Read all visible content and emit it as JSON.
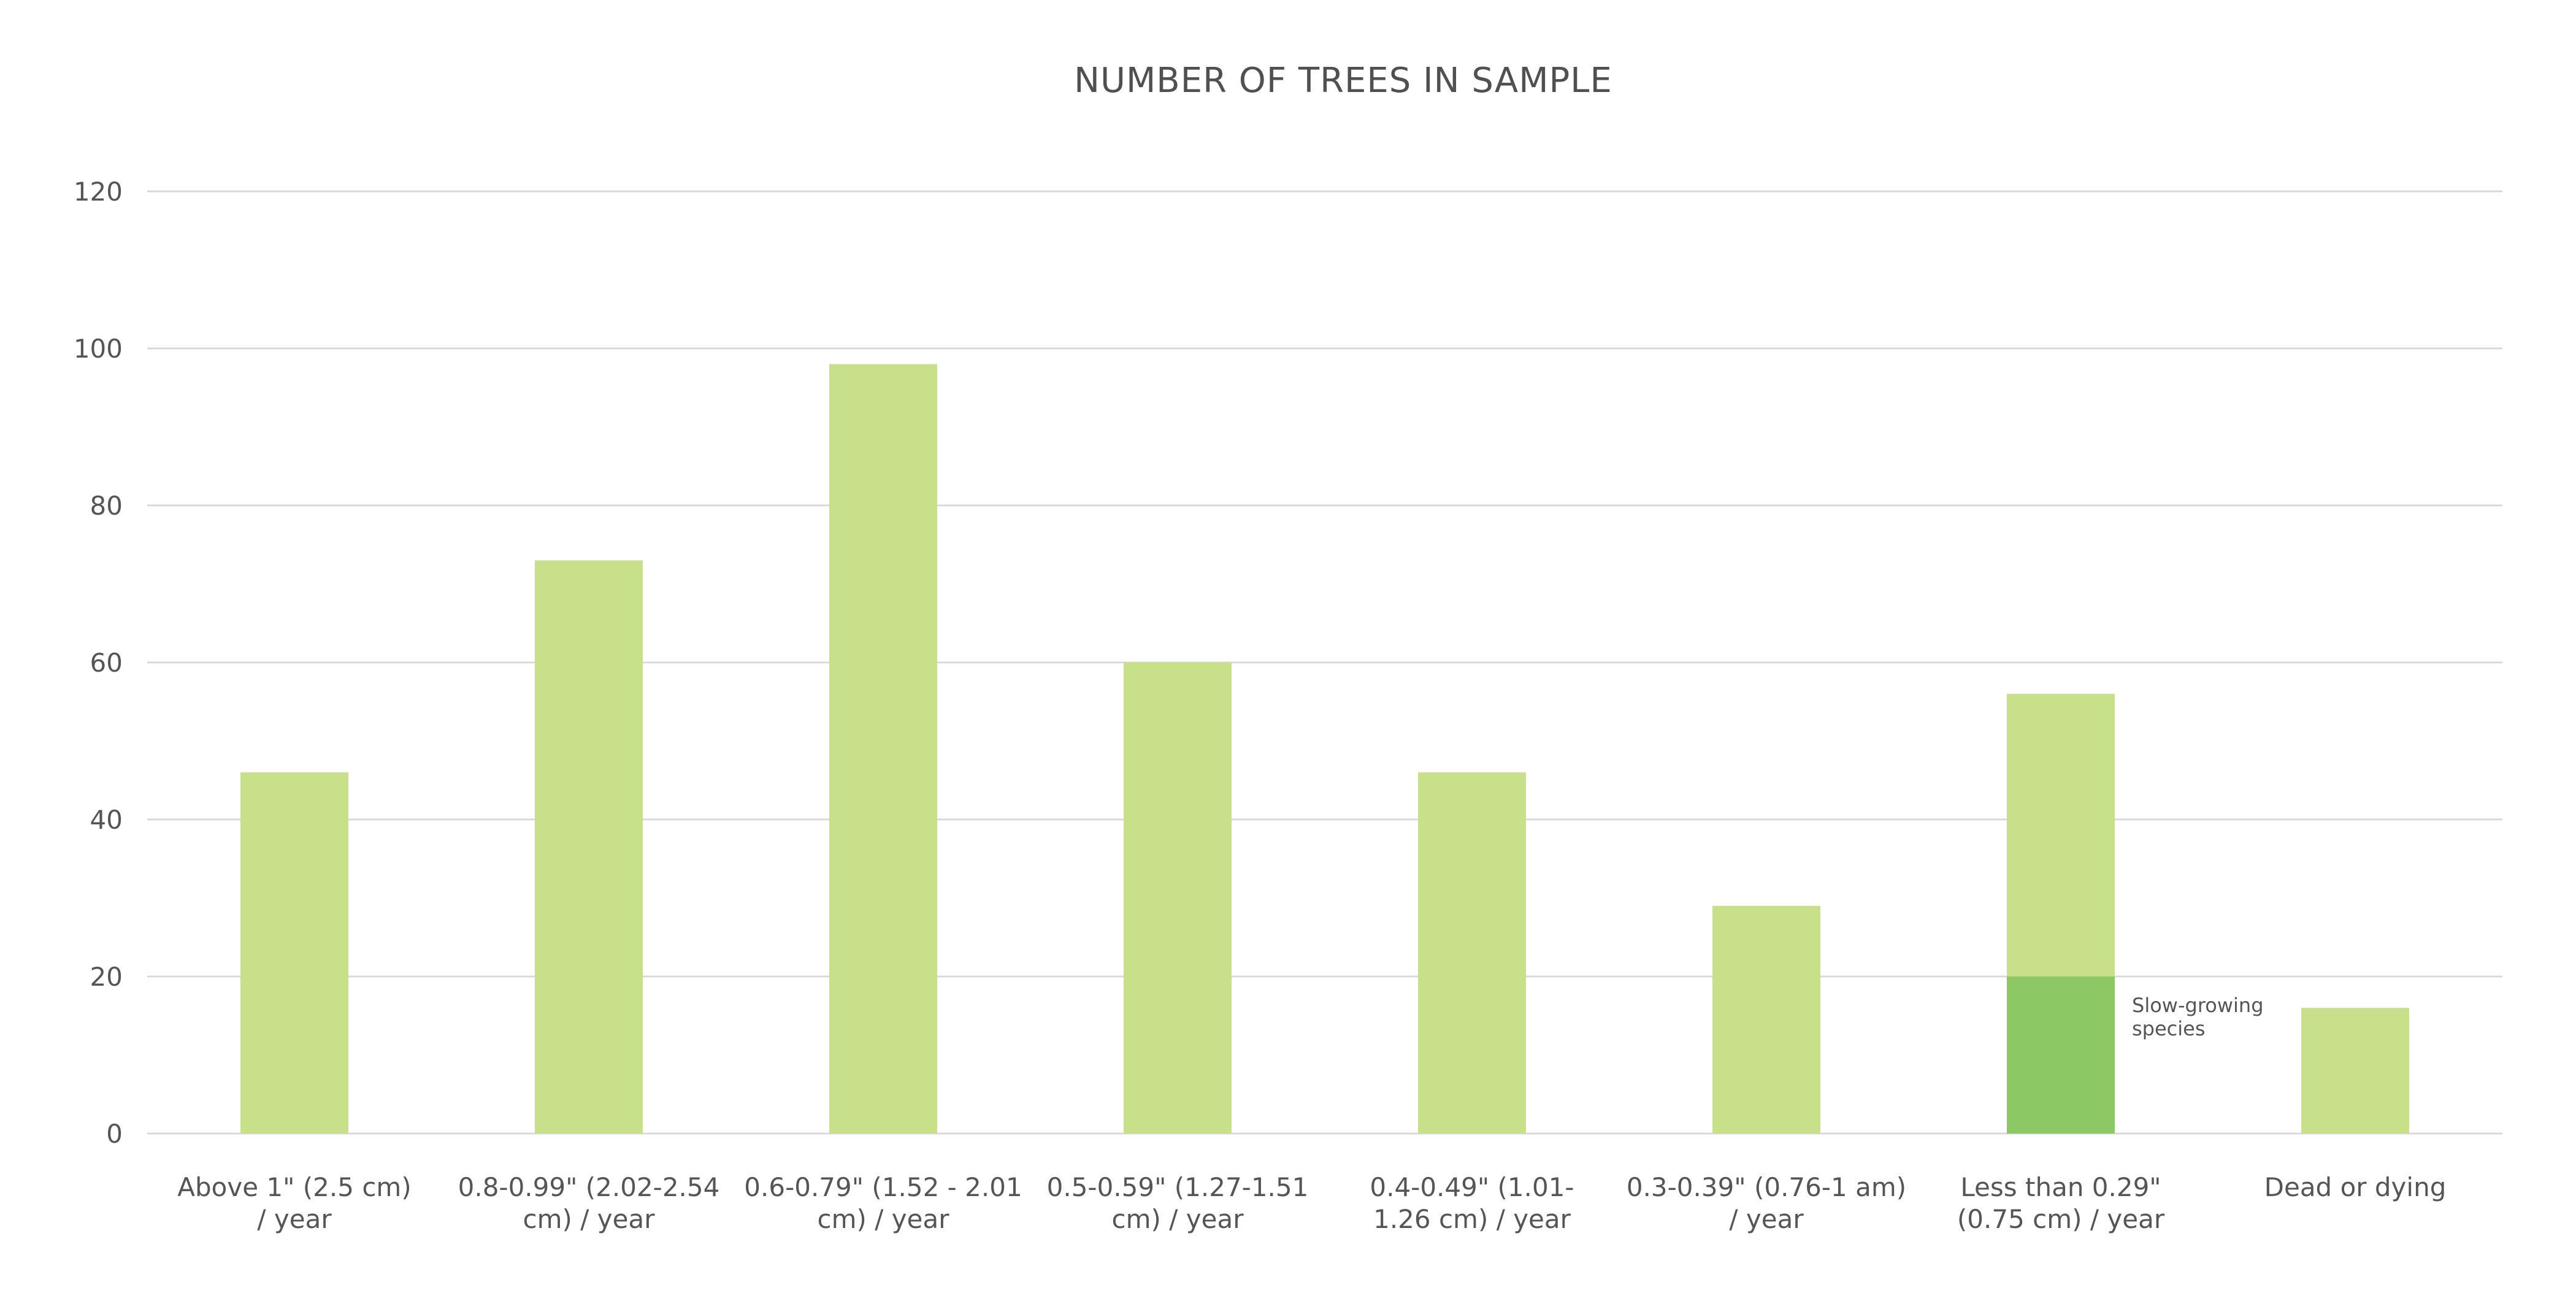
{
  "chart_data": {
    "type": "bar",
    "title": "NUMBER OF TREES IN SAMPLE",
    "xlabel": "",
    "ylabel": "",
    "ylim": [
      0,
      120
    ],
    "yticks": [
      0,
      20,
      40,
      60,
      80,
      100,
      120
    ],
    "grid": true,
    "legend": "none",
    "categories": [
      [
        "Above 1\" (2.5 cm)",
        "/ year"
      ],
      [
        "0.8-0.99\" (2.02-2.54",
        "cm) / year"
      ],
      [
        "0.6-0.79\" (1.52 - 2.01",
        "cm) / year"
      ],
      [
        "0.5-0.59\" (1.27-1.51",
        "cm) / year"
      ],
      [
        "0.4-0.49\" (1.01-",
        "1.26  cm) / year"
      ],
      [
        "0.3-0.39\" (0.76-1 am)",
        "/ year"
      ],
      [
        "Less than 0.29\"",
        "(0.75 cm) / year"
      ],
      [
        "Dead or dying"
      ]
    ],
    "values": [
      46,
      73,
      98,
      60,
      46,
      29,
      56,
      16
    ],
    "highlight": {
      "category_index": 6,
      "value": 20,
      "label": [
        "Slow-growing",
        "species"
      ],
      "color": "#8cc964"
    },
    "colors": {
      "bar": "#c9e08a",
      "highlight": "#8cc964",
      "grid": "#d9d9d9",
      "text": "#555555"
    }
  }
}
